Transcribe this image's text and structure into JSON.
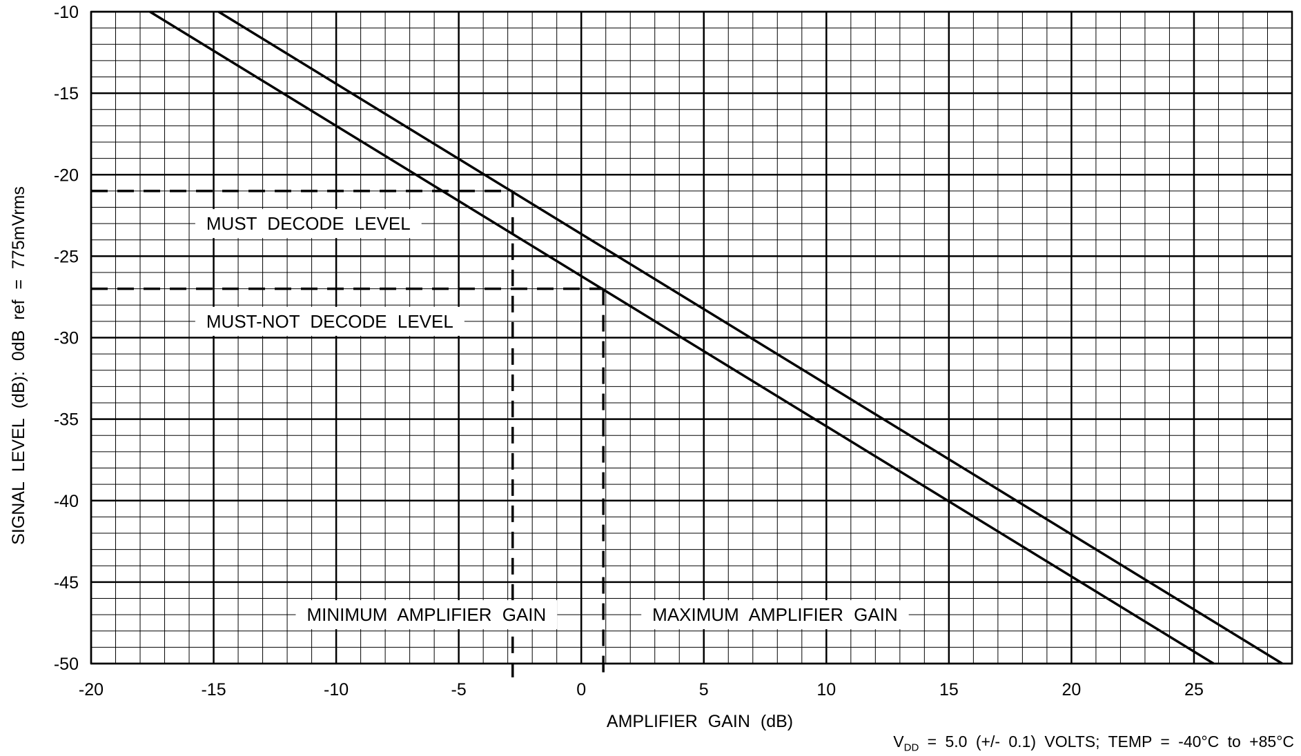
{
  "chart_data": {
    "type": "line",
    "xlabel": "AMPLIFIER GAIN (dB)",
    "ylabel": "SIGNAL LEVEL (dB): 0dB ref = 775mVrms",
    "xlim": [
      -20,
      29
    ],
    "ylim": [
      -50,
      -10
    ],
    "x_ticks": [
      "-20",
      "-15",
      "-10",
      "-5",
      "0",
      "5",
      "10",
      "15",
      "20",
      "25"
    ],
    "y_ticks": [
      "-10",
      "-15",
      "-20",
      "-25",
      "-30",
      "-35",
      "-40",
      "-45",
      "-50"
    ],
    "grid": "major every 5 dB plus minor every 1 dB",
    "series": [
      {
        "x": [
          -14.8,
          28.6
        ],
        "y": [
          -10,
          -50
        ]
      },
      {
        "x": [
          -17.6,
          25.8
        ],
        "y": [
          -10,
          -50
        ]
      }
    ],
    "reference_lines": [
      {
        "orientation": "horizontal",
        "y": -21,
        "x_end": -2.8
      },
      {
        "orientation": "horizontal",
        "y": -27,
        "x_end": 0.9
      },
      {
        "orientation": "vertical",
        "x": -2.8,
        "y_start": -21
      },
      {
        "orientation": "vertical",
        "x": 0.9,
        "y_start": -27
      }
    ],
    "annotations": [
      {
        "text": "MUST DECODE LEVEL",
        "x": -15.3,
        "y": -23
      },
      {
        "text": "MUST-NOT DECODE LEVEL",
        "x": -15.3,
        "y": -29
      },
      {
        "text": "MINIMUM AMPLIFIER GAIN",
        "x": -11.2,
        "y": -47
      },
      {
        "text": "MAXIMUM AMPLIFIER GAIN",
        "x": 2.9,
        "y": -47
      }
    ],
    "footnote": {
      "prefix": "V",
      "subscript": "DD",
      "text": " = 5.0 (+/- 0.1) VOLTS; TEMP = -40°C to +85°C"
    }
  }
}
